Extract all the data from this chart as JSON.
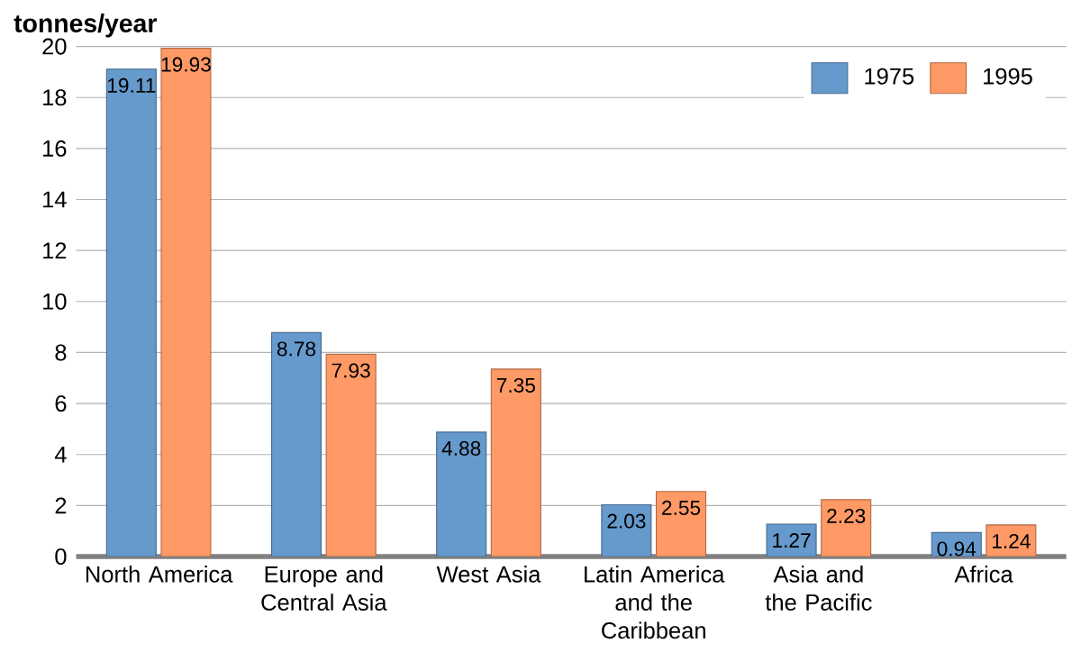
{
  "chart_data": {
    "type": "bar",
    "ylabel": "tonnes/year",
    "categories": [
      "North America",
      "Europe and Central Asia",
      "West Asia",
      "Latin America and the Caribbean",
      "Asia and the Pacific",
      "Africa"
    ],
    "series": [
      {
        "name": "1975",
        "color": "#6699cc",
        "values": [
          19.11,
          8.78,
          4.88,
          2.03,
          1.27,
          0.94
        ]
      },
      {
        "name": "1995",
        "color": "#ff9966",
        "values": [
          19.93,
          7.93,
          7.35,
          2.55,
          2.23,
          1.24
        ]
      }
    ],
    "ylim": [
      0,
      20
    ],
    "yticks": [
      0,
      2,
      4,
      6,
      8,
      10,
      12,
      14,
      16,
      18,
      20
    ],
    "grid": "y",
    "legend": "top right",
    "data_labels": true
  }
}
